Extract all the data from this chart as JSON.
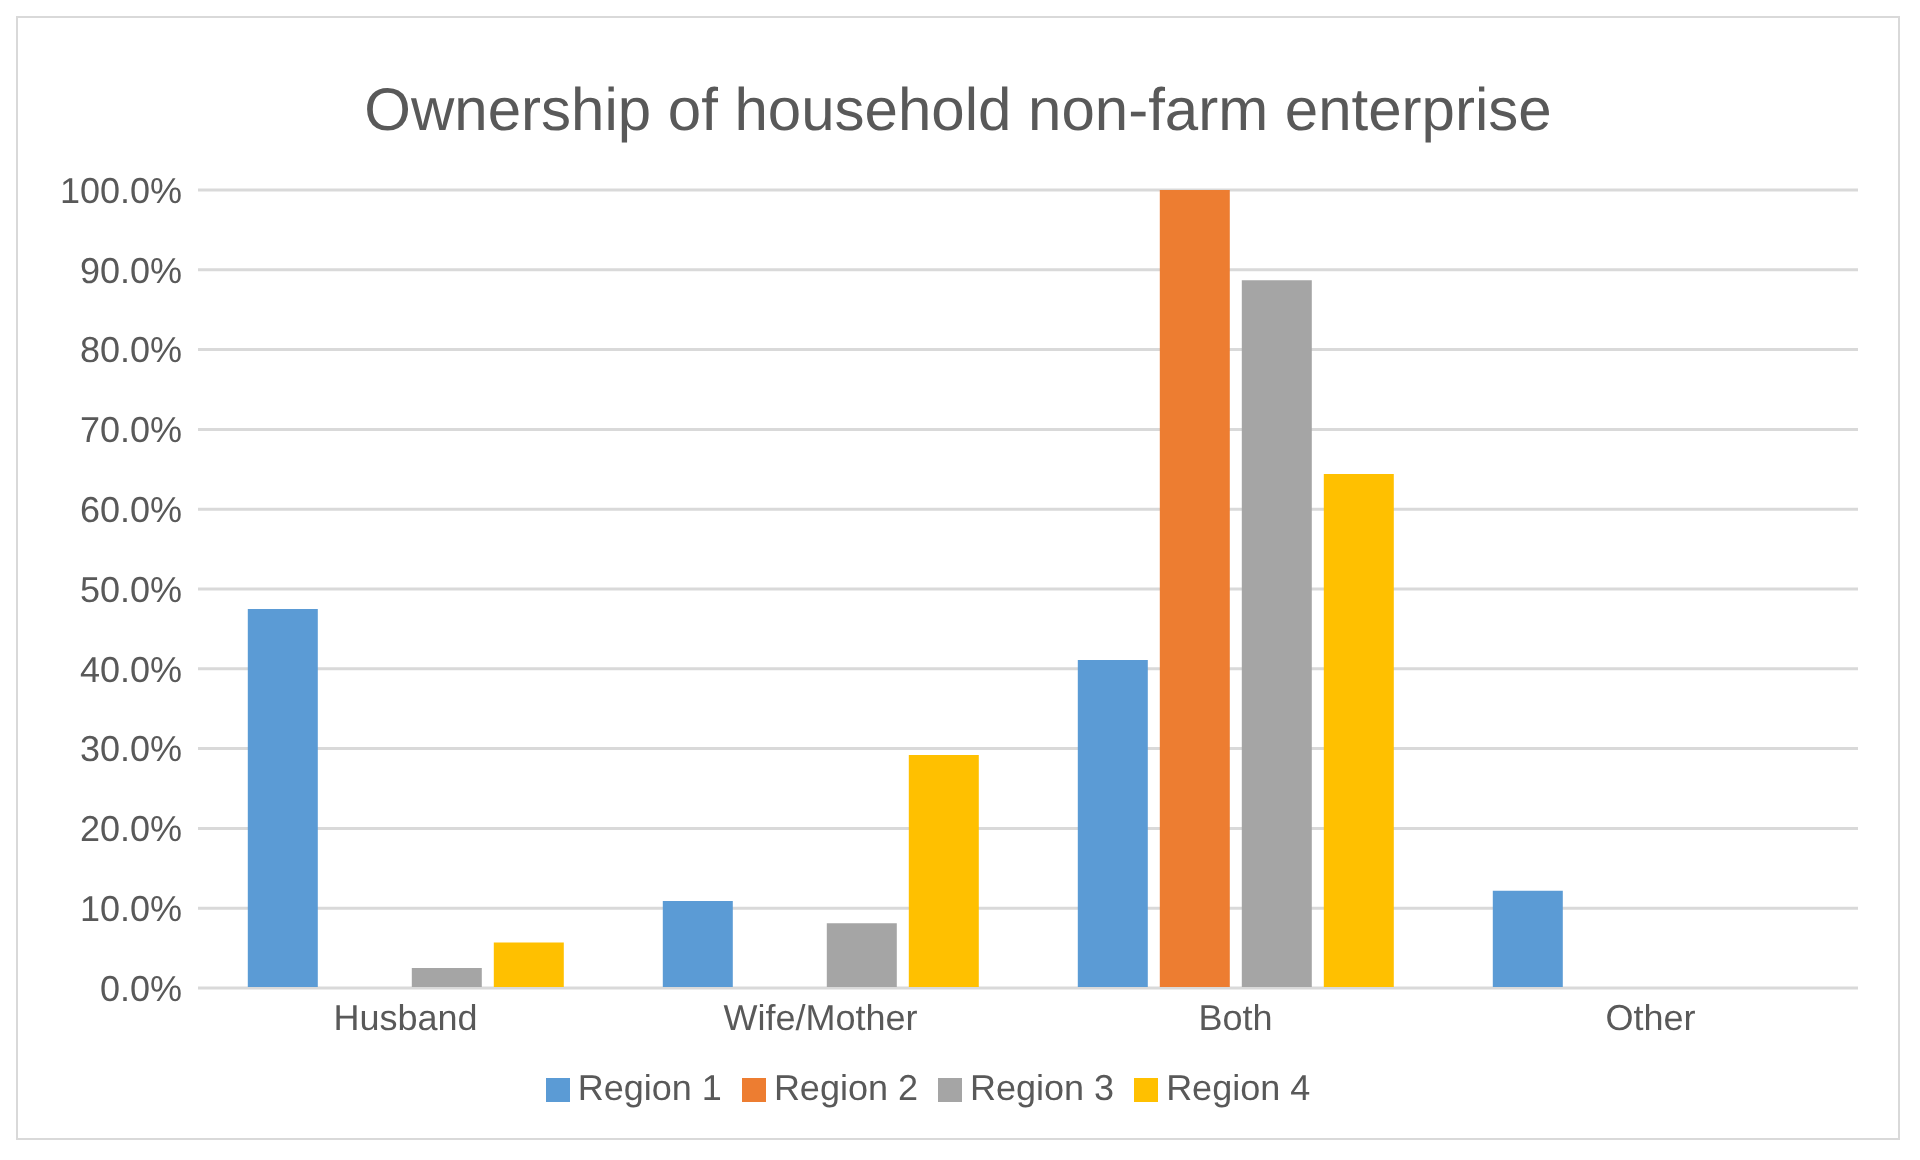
{
  "chart_data": {
    "type": "bar",
    "title": "Ownership of household non-farm enterprise",
    "categories": [
      "Husband",
      "Wife/Mother",
      "Both",
      "Other"
    ],
    "series": [
      {
        "name": "Region 1",
        "color": "#5b9bd5",
        "values": [
          47.5,
          10.9,
          41.1,
          12.2
        ]
      },
      {
        "name": "Region 2",
        "color": "#ed7d31",
        "values": [
          0,
          0,
          100,
          0
        ]
      },
      {
        "name": "Region 3",
        "color": "#a5a5a5",
        "values": [
          2.5,
          8.1,
          88.7,
          0
        ]
      },
      {
        "name": "Region 4",
        "color": "#ffc000",
        "values": [
          5.7,
          29.2,
          64.4,
          0
        ]
      }
    ],
    "ylim": [
      0,
      100
    ],
    "yticks": [
      {
        "value": 0,
        "label": "0.0%"
      },
      {
        "value": 10,
        "label": "10.0%"
      },
      {
        "value": 20,
        "label": "20.0%"
      },
      {
        "value": 30,
        "label": "30.0%"
      },
      {
        "value": 40,
        "label": "40.0%"
      },
      {
        "value": 50,
        "label": "50.0%"
      },
      {
        "value": 60,
        "label": "60.0%"
      },
      {
        "value": 70,
        "label": "70.0%"
      },
      {
        "value": 80,
        "label": "80.0%"
      },
      {
        "value": 90,
        "label": "90.0%"
      },
      {
        "value": 100,
        "label": "100.0%"
      }
    ],
    "grid": "y",
    "legend": "bottom"
  }
}
